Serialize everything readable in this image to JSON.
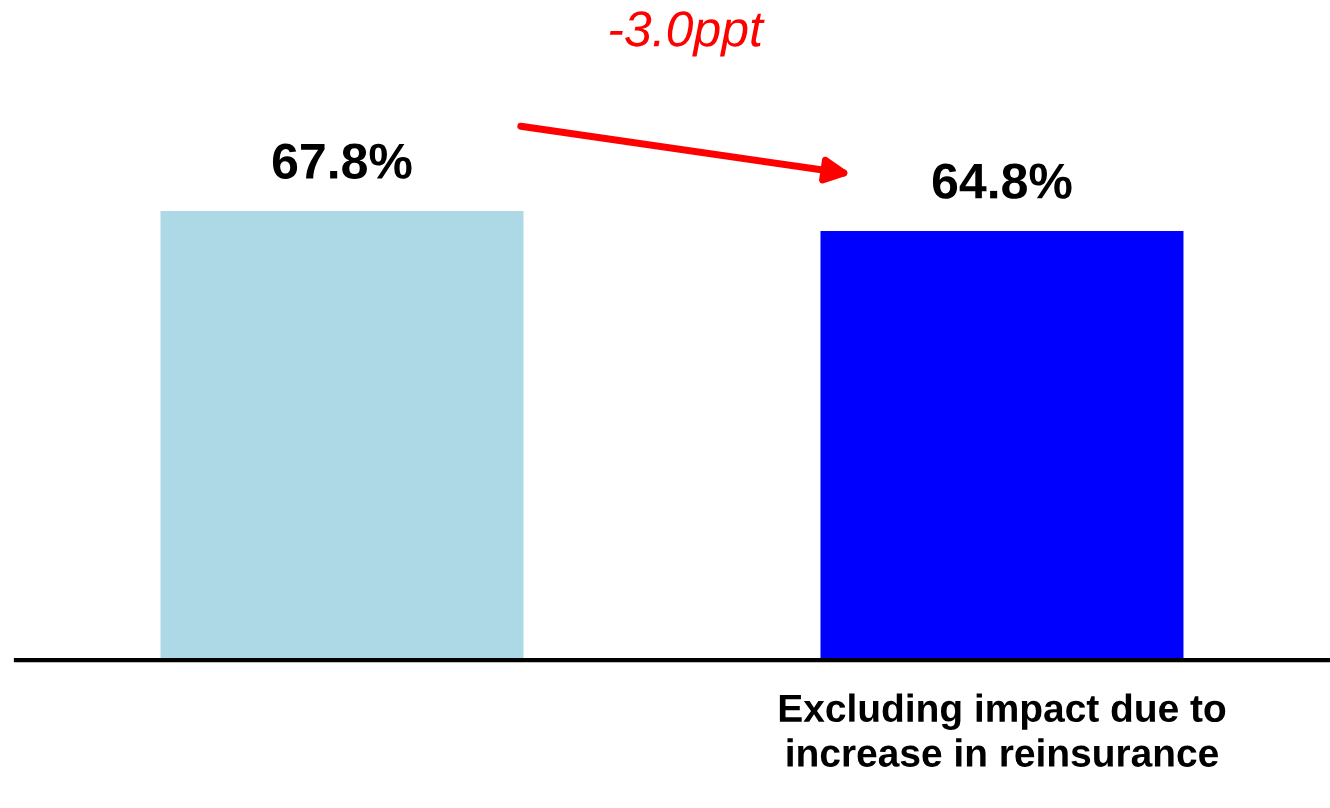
{
  "chart_data": {
    "type": "bar",
    "categories": [
      null,
      "Excluding impact due to\nincrease in reinsurance"
    ],
    "values": [
      67.8,
      64.8
    ],
    "colors": [
      "#add8e6",
      "#0000ff"
    ],
    "data_labels": true,
    "value_labels": [
      "67.8%",
      "64.8%"
    ],
    "annotations": [
      "-3.0ppt"
    ],
    "tick_labels": "x",
    "grid": false,
    "legend": false
  }
}
